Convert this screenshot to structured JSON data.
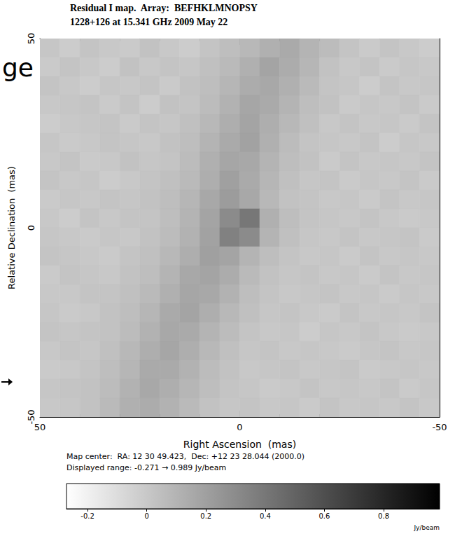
{
  "chart_data": {
    "type": "heatmap",
    "title": "Residual I map.  Array:  BEFHKLMNOPSY",
    "subtitle": "1228+126 at 15.341 GHz 2009 May 22",
    "x_label": "Right Ascension  (mas)",
    "y_label": "Relative Declination  (mas)",
    "xlim": [
      50,
      -50
    ],
    "ylim": [
      -50,
      50
    ],
    "xticks": [
      50,
      0,
      -50
    ],
    "yticks": [
      -50,
      0,
      50
    ],
    "x": [
      47.5,
      42.5,
      37.5,
      32.5,
      27.5,
      22.5,
      17.5,
      12.5,
      7.5,
      2.5,
      -2.5,
      -7.5,
      -12.5,
      -17.5,
      -22.5,
      -27.5,
      -32.5,
      -37.5,
      -42.5,
      -47.5
    ],
    "y": [
      47.5,
      42.5,
      37.5,
      32.5,
      27.5,
      22.5,
      17.5,
      12.5,
      7.5,
      2.5,
      -2.5,
      -7.5,
      -12.5,
      -17.5,
      -22.5,
      -27.5,
      -32.5,
      -37.5,
      -42.5,
      -47.5
    ],
    "values": [
      [
        0.01,
        -0.02,
        0.02,
        0.0,
        -0.01,
        0.03,
        0.0,
        -0.02,
        0.02,
        0.05,
        0.08,
        0.12,
        0.15,
        0.1,
        0.06,
        0.02,
        -0.01,
        0.02,
        0.0,
        -0.02
      ],
      [
        -0.01,
        0.02,
        0.0,
        -0.02,
        0.03,
        0.0,
        0.02,
        0.01,
        0.04,
        0.07,
        0.12,
        0.18,
        0.14,
        0.09,
        0.03,
        0.0,
        0.02,
        -0.01,
        0.01,
        0.0
      ],
      [
        0.02,
        0.0,
        -0.02,
        0.01,
        0.0,
        0.02,
        -0.01,
        0.03,
        0.05,
        0.09,
        0.14,
        0.16,
        0.12,
        0.07,
        0.02,
        0.01,
        -0.02,
        0.02,
        0.0,
        0.01
      ],
      [
        0.0,
        0.01,
        0.02,
        -0.01,
        0.02,
        -0.02,
        0.03,
        0.02,
        0.06,
        0.11,
        0.17,
        0.15,
        0.1,
        0.05,
        0.03,
        -0.01,
        0.01,
        0.0,
        0.02,
        -0.01
      ],
      [
        -0.02,
        0.0,
        0.01,
        0.02,
        -0.01,
        0.02,
        0.01,
        0.04,
        0.08,
        0.13,
        0.18,
        0.13,
        0.08,
        0.04,
        0.0,
        0.02,
        0.0,
        0.01,
        -0.01,
        0.02
      ],
      [
        0.01,
        -0.01,
        0.0,
        0.02,
        0.01,
        0.0,
        0.03,
        0.05,
        0.1,
        0.15,
        0.19,
        0.12,
        0.06,
        0.02,
        0.01,
        0.0,
        0.02,
        -0.02,
        0.01,
        0.0
      ],
      [
        0.0,
        0.02,
        -0.01,
        0.0,
        0.03,
        0.01,
        0.02,
        0.06,
        0.12,
        0.17,
        0.16,
        0.1,
        0.05,
        0.03,
        -0.01,
        0.02,
        0.0,
        0.01,
        0.0,
        0.02
      ],
      [
        0.02,
        0.0,
        0.01,
        -0.02,
        0.0,
        0.02,
        0.04,
        0.07,
        0.13,
        0.2,
        0.15,
        0.09,
        0.04,
        0.01,
        0.02,
        -0.01,
        0.01,
        0.0,
        0.02,
        -0.01
      ],
      [
        -0.01,
        0.01,
        0.0,
        0.02,
        0.01,
        0.03,
        0.05,
        0.09,
        0.16,
        0.22,
        0.16,
        0.08,
        0.03,
        0.02,
        0.0,
        0.01,
        -0.01,
        0.02,
        0.0,
        0.01
      ],
      [
        0.0,
        -0.02,
        0.02,
        0.0,
        0.02,
        0.02,
        0.05,
        0.1,
        0.18,
        0.3,
        0.4,
        0.12,
        0.05,
        0.02,
        0.01,
        0.0,
        0.02,
        0.0,
        -0.01,
        0.0
      ],
      [
        0.01,
        0.0,
        -0.01,
        0.01,
        0.0,
        0.03,
        0.06,
        0.11,
        0.19,
        0.35,
        0.3,
        0.1,
        0.04,
        0.01,
        0.0,
        0.02,
        0.0,
        0.01,
        0.02,
        -0.01
      ],
      [
        0.02,
        0.01,
        0.0,
        -0.01,
        0.02,
        0.04,
        0.08,
        0.13,
        0.2,
        0.18,
        0.1,
        0.05,
        0.02,
        0.0,
        0.01,
        -0.01,
        0.02,
        0.0,
        0.01,
        0.0
      ],
      [
        -0.01,
        0.02,
        0.01,
        0.0,
        0.03,
        0.05,
        0.1,
        0.16,
        0.18,
        0.14,
        0.07,
        0.03,
        0.01,
        0.02,
        0.0,
        0.01,
        -0.01,
        0.02,
        0.0,
        0.01
      ],
      [
        0.0,
        0.0,
        0.02,
        0.02,
        0.04,
        0.07,
        0.12,
        0.17,
        0.16,
        0.11,
        0.05,
        0.02,
        0.0,
        0.01,
        0.02,
        0.0,
        0.01,
        -0.01,
        0.01,
        0.0
      ],
      [
        0.01,
        -0.01,
        0.0,
        0.03,
        0.05,
        0.09,
        0.15,
        0.18,
        0.13,
        0.08,
        0.04,
        0.01,
        0.02,
        0.0,
        -0.01,
        0.02,
        0.0,
        0.01,
        0.0,
        0.02
      ],
      [
        0.02,
        0.01,
        0.02,
        0.03,
        0.06,
        0.11,
        0.16,
        0.15,
        0.1,
        0.06,
        0.02,
        0.0,
        0.01,
        -0.02,
        0.01,
        0.0,
        0.02,
        0.0,
        -0.01,
        0.0
      ],
      [
        0.0,
        0.02,
        0.01,
        0.04,
        0.08,
        0.13,
        0.17,
        0.13,
        0.08,
        0.04,
        0.01,
        0.02,
        0.0,
        0.01,
        0.0,
        -0.01,
        0.01,
        0.02,
        0.0,
        0.01
      ],
      [
        -0.01,
        0.0,
        0.02,
        0.05,
        0.09,
        0.15,
        0.15,
        0.11,
        0.06,
        0.03,
        0.0,
        0.01,
        0.02,
        0.0,
        0.01,
        0.02,
        -0.01,
        0.0,
        0.01,
        0.0
      ],
      [
        0.01,
        0.02,
        0.03,
        0.06,
        0.11,
        0.16,
        0.13,
        0.09,
        0.05,
        0.02,
        0.01,
        -0.01,
        0.0,
        0.02,
        0.0,
        0.01,
        0.0,
        0.02,
        -0.01,
        0.01
      ],
      [
        0.0,
        0.01,
        0.03,
        0.07,
        0.12,
        0.14,
        0.11,
        0.07,
        0.03,
        0.01,
        0.02,
        0.0,
        0.01,
        -0.01,
        0.02,
        0.0,
        0.01,
        0.0,
        0.02,
        0.0
      ]
    ],
    "colorbar": {
      "range": [
        -0.271,
        0.989
      ],
      "ticks": [
        -0.2,
        0,
        0.2,
        0.4,
        0.6,
        0.8
      ],
      "label": "Jy/beam",
      "colors": [
        "#ffffff",
        "#000000"
      ]
    },
    "annotations": [
      "Map center:  RA: 12 30 49.423,  Dec: +12 23 28.044 (2000.0)",
      "Displayed range: -0.271 → 0.989 Jy/beam",
      "ge"
    ]
  }
}
